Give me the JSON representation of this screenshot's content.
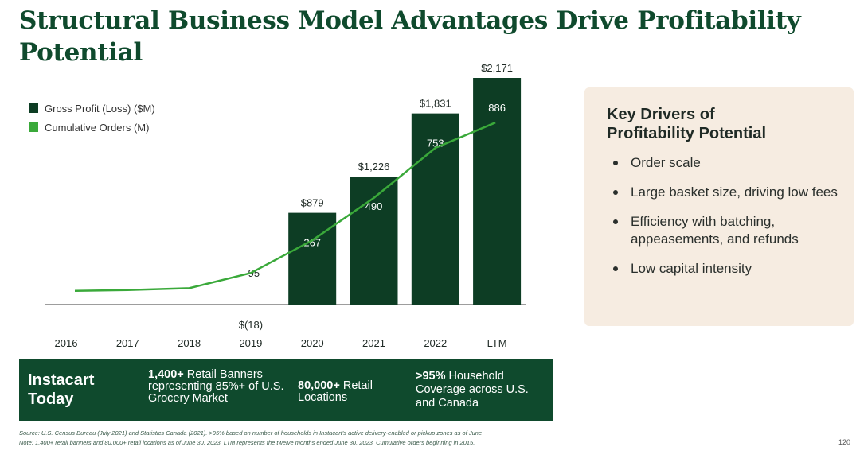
{
  "title": "Structural Business Model Advantages Drive Profitability Potential",
  "legend": {
    "gross_profit": "Gross Profit (Loss) ($M)",
    "cumulative_orders": "Cumulative Orders (M)"
  },
  "chart_data": {
    "type": "bar",
    "categories": [
      "2016",
      "2017",
      "2018",
      "2019",
      "2020",
      "2021",
      "2022",
      "LTM"
    ],
    "series": [
      {
        "name": "Gross Profit (Loss) ($M)",
        "type": "bar",
        "values": [
          null,
          null,
          null,
          -18,
          879,
          1226,
          1831,
          2171
        ],
        "labels": [
          "",
          "",
          "",
          "$(18)",
          "$879",
          "$1,226",
          "$1,831",
          "$2,171"
        ]
      },
      {
        "name": "Cumulative Orders (M)",
        "type": "line",
        "values": [
          1,
          5,
          15,
          95,
          267,
          490,
          753,
          886
        ],
        "labels": [
          "",
          "",
          "",
          "95",
          "267",
          "490",
          "753",
          "886"
        ]
      }
    ],
    "colors": {
      "bar": "#0d3d24",
      "line": "#3aa93a"
    }
  },
  "drivers": {
    "title": "Key Drivers of Profitability Potential",
    "items": [
      "Order scale",
      "Large basket size, driving low fees",
      "Efficiency with batching, appeasements, and refunds",
      "Low capital intensity"
    ]
  },
  "banner": {
    "title": "Instacart Today",
    "stat1_bold": "1,400+",
    "stat1_text": " Retail Banners representing 85%+ of U.S. Grocery Market",
    "stat2_bold": "80,000+",
    "stat2_text": " Retail Locations",
    "stat3_bold": ">95%",
    "stat3_text": " Household Coverage across U.S. and Canada"
  },
  "footnotes": {
    "source": "Source: U.S. Census Bureau (July 2021) and Statistics Canada (2021). >95% based on number of households in Instacart's active delivery-enabled or pickup zones as of June",
    "note": "Note: 1,400+ retail banners and 80,000+ retail locations as of June 30, 2023. LTM represents the twelve months ended June 30, 2023. Cumulative orders beginning in 2015."
  },
  "page_number": "120"
}
